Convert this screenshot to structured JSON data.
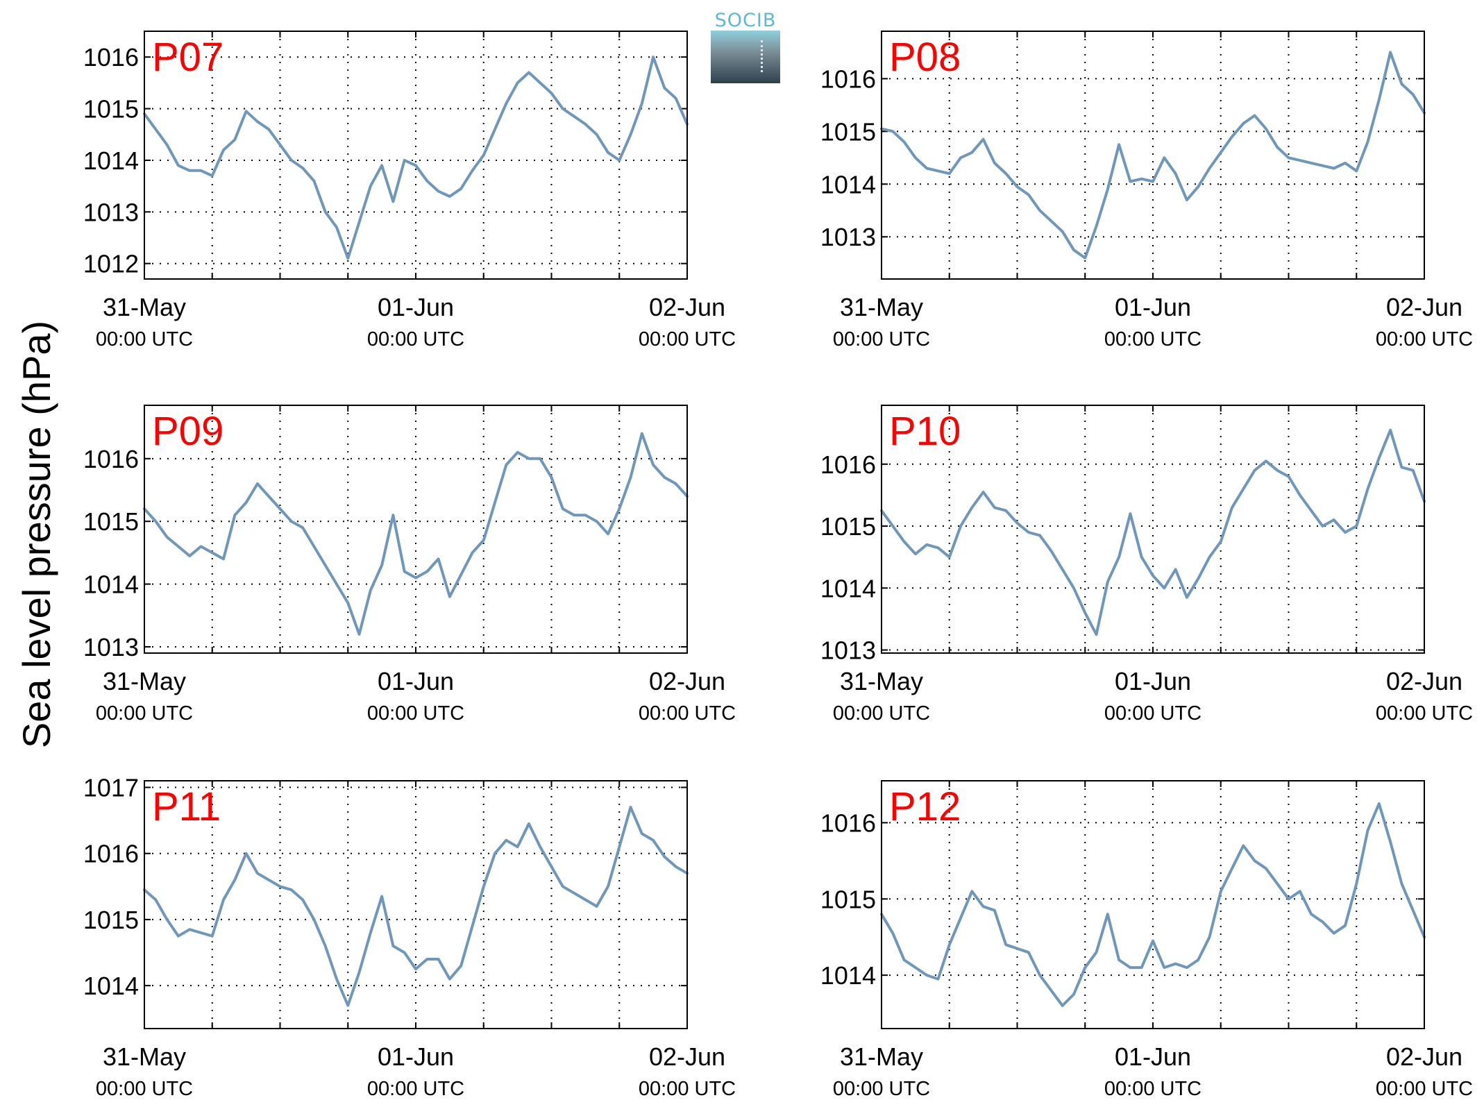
{
  "figure": {
    "ylabel": "Sea level pressure (hPa)",
    "logo_text": "SOCIB",
    "colors": {
      "line": "#6e97bb",
      "station_label": "#ff0000",
      "axes": "#000000",
      "grid": "#000000"
    }
  },
  "chart_data": [
    {
      "type": "line",
      "title": "P07",
      "xlim": [
        "31-May 00:00",
        "02-Jun 00:00"
      ],
      "ylim": [
        1011.7,
        1016.5
      ],
      "yticks": [
        1012,
        1013,
        1014,
        1015,
        1016
      ],
      "xtick_labels": [
        [
          "31-May",
          "00:00 UTC"
        ],
        [
          "01-Jun",
          "00:00 UTC"
        ],
        [
          "02-Jun",
          "00:00 UTC"
        ]
      ],
      "grid": true,
      "series": [
        {
          "x": [
            "31-May 00:00",
            "31-May 01:00",
            "31-May 02:00",
            "31-May 03:00",
            "31-May 04:00",
            "31-May 05:00",
            "31-May 06:00",
            "31-May 07:00",
            "31-May 08:00",
            "31-May 09:00",
            "31-May 10:00",
            "31-May 11:00",
            "31-May 12:00",
            "31-May 13:00",
            "31-May 14:00",
            "31-May 15:00",
            "31-May 16:00",
            "31-May 17:00",
            "31-May 18:00",
            "31-May 19:00",
            "31-May 20:00",
            "31-May 21:00",
            "31-May 22:00",
            "31-May 23:00",
            "01-Jun 00:00",
            "01-Jun 01:00",
            "01-Jun 02:00",
            "01-Jun 03:00",
            "01-Jun 04:00",
            "01-Jun 05:00",
            "01-Jun 06:00",
            "01-Jun 07:00",
            "01-Jun 08:00",
            "01-Jun 09:00",
            "01-Jun 10:00",
            "01-Jun 11:00",
            "01-Jun 12:00",
            "01-Jun 13:00",
            "01-Jun 14:00",
            "01-Jun 15:00",
            "01-Jun 16:00",
            "01-Jun 17:00",
            "01-Jun 18:00",
            "01-Jun 19:00",
            "01-Jun 20:00",
            "01-Jun 21:00",
            "01-Jun 22:00",
            "01-Jun 23:00",
            "02-Jun 00:00"
          ],
          "values": [
            1014.9,
            1014.6,
            1014.3,
            1013.9,
            1013.8,
            1013.8,
            1013.7,
            1014.2,
            1014.4,
            1014.95,
            1014.75,
            1014.6,
            1014.3,
            1014.0,
            1013.85,
            1013.6,
            1013.0,
            1012.7,
            1012.1,
            1012.8,
            1013.5,
            1013.9,
            1013.2,
            1014.0,
            1013.9,
            1013.6,
            1013.4,
            1013.3,
            1013.45,
            1013.8,
            1014.1,
            1014.6,
            1015.1,
            1015.5,
            1015.7,
            1015.5,
            1015.3,
            1015.0,
            1014.85,
            1014.7,
            1014.5,
            1014.15,
            1014.0,
            1014.5,
            1015.1,
            1016.0,
            1015.4,
            1015.2,
            1014.7
          ]
        }
      ]
    },
    {
      "type": "line",
      "title": "P08",
      "xlim": [
        "31-May 00:00",
        "02-Jun 00:00"
      ],
      "ylim": [
        1012.2,
        1016.9
      ],
      "yticks": [
        1013,
        1014,
        1015,
        1016
      ],
      "xtick_labels": [
        [
          "31-May",
          "00:00 UTC"
        ],
        [
          "01-Jun",
          "00:00 UTC"
        ],
        [
          "02-Jun",
          "00:00 UTC"
        ]
      ],
      "grid": true,
      "series": [
        {
          "x": [
            "31-May 00:00",
            "31-May 01:00",
            "31-May 02:00",
            "31-May 03:00",
            "31-May 04:00",
            "31-May 05:00",
            "31-May 06:00",
            "31-May 07:00",
            "31-May 08:00",
            "31-May 09:00",
            "31-May 10:00",
            "31-May 11:00",
            "31-May 12:00",
            "31-May 13:00",
            "31-May 14:00",
            "31-May 15:00",
            "31-May 16:00",
            "31-May 17:00",
            "31-May 18:00",
            "31-May 19:00",
            "31-May 20:00",
            "31-May 21:00",
            "31-May 22:00",
            "31-May 23:00",
            "01-Jun 00:00",
            "01-Jun 01:00",
            "01-Jun 02:00",
            "01-Jun 03:00",
            "01-Jun 04:00",
            "01-Jun 05:00",
            "01-Jun 06:00",
            "01-Jun 07:00",
            "01-Jun 08:00",
            "01-Jun 09:00",
            "01-Jun 10:00",
            "01-Jun 11:00",
            "01-Jun 12:00",
            "01-Jun 13:00",
            "01-Jun 14:00",
            "01-Jun 15:00",
            "01-Jun 16:00",
            "01-Jun 17:00",
            "01-Jun 18:00",
            "01-Jun 19:00",
            "01-Jun 20:00",
            "01-Jun 21:00",
            "01-Jun 22:00",
            "01-Jun 23:00",
            "02-Jun 00:00"
          ],
          "values": [
            1015.05,
            1015.0,
            1014.8,
            1014.5,
            1014.3,
            1014.25,
            1014.2,
            1014.5,
            1014.6,
            1014.85,
            1014.4,
            1014.2,
            1013.95,
            1013.8,
            1013.5,
            1013.3,
            1013.1,
            1012.75,
            1012.6,
            1013.2,
            1013.9,
            1014.75,
            1014.05,
            1014.1,
            1014.05,
            1014.5,
            1014.2,
            1013.7,
            1013.95,
            1014.3,
            1014.6,
            1014.9,
            1015.15,
            1015.3,
            1015.05,
            1014.7,
            1014.5,
            1014.45,
            1014.4,
            1014.35,
            1014.3,
            1014.4,
            1014.25,
            1014.8,
            1015.6,
            1016.5,
            1015.9,
            1015.7,
            1015.35
          ]
        }
      ]
    },
    {
      "type": "line",
      "title": "P09",
      "xlim": [
        "31-May 00:00",
        "02-Jun 00:00"
      ],
      "ylim": [
        1012.9,
        1016.85
      ],
      "yticks": [
        1013,
        1014,
        1015,
        1016
      ],
      "xtick_labels": [
        [
          "31-May",
          "00:00 UTC"
        ],
        [
          "01-Jun",
          "00:00 UTC"
        ],
        [
          "02-Jun",
          "00:00 UTC"
        ]
      ],
      "grid": true,
      "series": [
        {
          "x": [
            "31-May 00:00",
            "31-May 01:00",
            "31-May 02:00",
            "31-May 03:00",
            "31-May 04:00",
            "31-May 05:00",
            "31-May 06:00",
            "31-May 07:00",
            "31-May 08:00",
            "31-May 09:00",
            "31-May 10:00",
            "31-May 11:00",
            "31-May 12:00",
            "31-May 13:00",
            "31-May 14:00",
            "31-May 15:00",
            "31-May 16:00",
            "31-May 17:00",
            "31-May 18:00",
            "31-May 19:00",
            "31-May 20:00",
            "31-May 21:00",
            "31-May 22:00",
            "31-May 23:00",
            "01-Jun 00:00",
            "01-Jun 01:00",
            "01-Jun 02:00",
            "01-Jun 03:00",
            "01-Jun 04:00",
            "01-Jun 05:00",
            "01-Jun 06:00",
            "01-Jun 07:00",
            "01-Jun 08:00",
            "01-Jun 09:00",
            "01-Jun 10:00",
            "01-Jun 11:00",
            "01-Jun 12:00",
            "01-Jun 13:00",
            "01-Jun 14:00",
            "01-Jun 15:00",
            "01-Jun 16:00",
            "01-Jun 17:00",
            "01-Jun 18:00",
            "01-Jun 19:00",
            "01-Jun 20:00",
            "01-Jun 21:00",
            "01-Jun 22:00",
            "01-Jun 23:00",
            "02-Jun 00:00"
          ],
          "values": [
            1015.2,
            1015.0,
            1014.75,
            1014.6,
            1014.45,
            1014.6,
            1014.5,
            1014.4,
            1015.1,
            1015.3,
            1015.6,
            1015.4,
            1015.2,
            1015.0,
            1014.9,
            1014.6,
            1014.3,
            1014.0,
            1013.7,
            1013.2,
            1013.9,
            1014.3,
            1015.1,
            1014.2,
            1014.1,
            1014.2,
            1014.4,
            1013.8,
            1014.15,
            1014.5,
            1014.7,
            1015.3,
            1015.9,
            1016.1,
            1016.0,
            1016.0,
            1015.7,
            1015.2,
            1015.1,
            1015.1,
            1015.0,
            1014.8,
            1015.2,
            1015.7,
            1016.4,
            1015.9,
            1015.7,
            1015.6,
            1015.4
          ]
        }
      ]
    },
    {
      "type": "line",
      "title": "P10",
      "xlim": [
        "31-May 00:00",
        "02-Jun 00:00"
      ],
      "ylim": [
        1012.95,
        1016.95
      ],
      "yticks": [
        1013,
        1014,
        1015,
        1016
      ],
      "xtick_labels": [
        [
          "31-May",
          "00:00 UTC"
        ],
        [
          "01-Jun",
          "00:00 UTC"
        ],
        [
          "02-Jun",
          "00:00 UTC"
        ]
      ],
      "grid": true,
      "series": [
        {
          "x": [
            "31-May 00:00",
            "31-May 01:00",
            "31-May 02:00",
            "31-May 03:00",
            "31-May 04:00",
            "31-May 05:00",
            "31-May 06:00",
            "31-May 07:00",
            "31-May 08:00",
            "31-May 09:00",
            "31-May 10:00",
            "31-May 11:00",
            "31-May 12:00",
            "31-May 13:00",
            "31-May 14:00",
            "31-May 15:00",
            "31-May 16:00",
            "31-May 17:00",
            "31-May 18:00",
            "31-May 19:00",
            "31-May 20:00",
            "31-May 21:00",
            "31-May 22:00",
            "31-May 23:00",
            "01-Jun 00:00",
            "01-Jun 01:00",
            "01-Jun 02:00",
            "01-Jun 03:00",
            "01-Jun 04:00",
            "01-Jun 05:00",
            "01-Jun 06:00",
            "01-Jun 07:00",
            "01-Jun 08:00",
            "01-Jun 09:00",
            "01-Jun 10:00",
            "01-Jun 11:00",
            "01-Jun 12:00",
            "01-Jun 13:00",
            "01-Jun 14:00",
            "01-Jun 15:00",
            "01-Jun 16:00",
            "01-Jun 17:00",
            "01-Jun 18:00",
            "01-Jun 19:00",
            "01-Jun 20:00",
            "01-Jun 21:00",
            "01-Jun 22:00",
            "01-Jun 23:00",
            "02-Jun 00:00"
          ],
          "values": [
            1015.25,
            1015.0,
            1014.75,
            1014.55,
            1014.7,
            1014.65,
            1014.5,
            1015.0,
            1015.3,
            1015.55,
            1015.3,
            1015.25,
            1015.05,
            1014.9,
            1014.85,
            1014.6,
            1014.3,
            1014.0,
            1013.6,
            1013.25,
            1014.1,
            1014.5,
            1015.2,
            1014.5,
            1014.2,
            1014.0,
            1014.3,
            1013.85,
            1014.15,
            1014.5,
            1014.75,
            1015.3,
            1015.6,
            1015.9,
            1016.05,
            1015.9,
            1015.8,
            1015.5,
            1015.25,
            1015.0,
            1015.1,
            1014.9,
            1015.0,
            1015.6,
            1016.1,
            1016.55,
            1015.95,
            1015.9,
            1015.4
          ]
        }
      ]
    },
    {
      "type": "line",
      "title": "P11",
      "xlim": [
        "31-May 00:00",
        "02-Jun 00:00"
      ],
      "ylim": [
        1013.35,
        1017.1
      ],
      "yticks": [
        1014,
        1015,
        1016,
        1017
      ],
      "xtick_labels": [
        [
          "31-May",
          "00:00 UTC"
        ],
        [
          "01-Jun",
          "00:00 UTC"
        ],
        [
          "02-Jun",
          "00:00 UTC"
        ]
      ],
      "grid": true,
      "series": [
        {
          "x": [
            "31-May 00:00",
            "31-May 01:00",
            "31-May 02:00",
            "31-May 03:00",
            "31-May 04:00",
            "31-May 05:00",
            "31-May 06:00",
            "31-May 07:00",
            "31-May 08:00",
            "31-May 09:00",
            "31-May 10:00",
            "31-May 11:00",
            "31-May 12:00",
            "31-May 13:00",
            "31-May 14:00",
            "31-May 15:00",
            "31-May 16:00",
            "31-May 17:00",
            "31-May 18:00",
            "31-May 19:00",
            "31-May 20:00",
            "31-May 21:00",
            "31-May 22:00",
            "31-May 23:00",
            "01-Jun 00:00",
            "01-Jun 01:00",
            "01-Jun 02:00",
            "01-Jun 03:00",
            "01-Jun 04:00",
            "01-Jun 05:00",
            "01-Jun 06:00",
            "01-Jun 07:00",
            "01-Jun 08:00",
            "01-Jun 09:00",
            "01-Jun 10:00",
            "01-Jun 11:00",
            "01-Jun 12:00",
            "01-Jun 13:00",
            "01-Jun 14:00",
            "01-Jun 15:00",
            "01-Jun 16:00",
            "01-Jun 17:00",
            "01-Jun 18:00",
            "01-Jun 19:00",
            "01-Jun 20:00",
            "01-Jun 21:00",
            "01-Jun 22:00",
            "01-Jun 23:00",
            "02-Jun 00:00"
          ],
          "values": [
            1015.45,
            1015.3,
            1015.0,
            1014.75,
            1014.85,
            1014.8,
            1014.75,
            1015.3,
            1015.6,
            1016.0,
            1015.7,
            1015.6,
            1015.5,
            1015.45,
            1015.3,
            1015.0,
            1014.6,
            1014.1,
            1013.7,
            1014.2,
            1014.8,
            1015.35,
            1014.6,
            1014.5,
            1014.25,
            1014.4,
            1014.4,
            1014.1,
            1014.3,
            1014.9,
            1015.5,
            1016.0,
            1016.2,
            1016.1,
            1016.45,
            1016.1,
            1015.8,
            1015.5,
            1015.4,
            1015.3,
            1015.2,
            1015.5,
            1016.1,
            1016.7,
            1016.3,
            1016.2,
            1015.95,
            1015.8,
            1015.7
          ]
        }
      ]
    },
    {
      "type": "line",
      "title": "P12",
      "xlim": [
        "31-May 00:00",
        "02-Jun 00:00"
      ],
      "ylim": [
        1013.3,
        1016.55
      ],
      "yticks": [
        1014,
        1015,
        1016
      ],
      "xtick_labels": [
        [
          "31-May",
          "00:00 UTC"
        ],
        [
          "01-Jun",
          "00:00 UTC"
        ],
        [
          "02-Jun",
          "00:00 UTC"
        ]
      ],
      "grid": true,
      "series": [
        {
          "x": [
            "31-May 00:00",
            "31-May 01:00",
            "31-May 02:00",
            "31-May 03:00",
            "31-May 04:00",
            "31-May 05:00",
            "31-May 06:00",
            "31-May 07:00",
            "31-May 08:00",
            "31-May 09:00",
            "31-May 10:00",
            "31-May 11:00",
            "31-May 12:00",
            "31-May 13:00",
            "31-May 14:00",
            "31-May 15:00",
            "31-May 16:00",
            "31-May 17:00",
            "31-May 18:00",
            "31-May 19:00",
            "31-May 20:00",
            "31-May 21:00",
            "31-May 22:00",
            "31-May 23:00",
            "01-Jun 00:00",
            "01-Jun 01:00",
            "01-Jun 02:00",
            "01-Jun 03:00",
            "01-Jun 04:00",
            "01-Jun 05:00",
            "01-Jun 06:00",
            "01-Jun 07:00",
            "01-Jun 08:00",
            "01-Jun 09:00",
            "01-Jun 10:00",
            "01-Jun 11:00",
            "01-Jun 12:00",
            "01-Jun 13:00",
            "01-Jun 14:00",
            "01-Jun 15:00",
            "01-Jun 16:00",
            "01-Jun 17:00",
            "01-Jun 18:00",
            "01-Jun 19:00",
            "01-Jun 20:00",
            "01-Jun 21:00",
            "01-Jun 22:00",
            "01-Jun 23:00",
            "02-Jun 00:00"
          ],
          "values": [
            1014.8,
            1014.55,
            1014.2,
            1014.1,
            1014.0,
            1013.95,
            1014.4,
            1014.75,
            1015.1,
            1014.9,
            1014.85,
            1014.4,
            1014.35,
            1014.3,
            1014.0,
            1013.8,
            1013.6,
            1013.75,
            1014.1,
            1014.3,
            1014.8,
            1014.2,
            1014.1,
            1014.1,
            1014.45,
            1014.1,
            1014.15,
            1014.1,
            1014.2,
            1014.5,
            1015.1,
            1015.4,
            1015.7,
            1015.5,
            1015.4,
            1015.2,
            1015.0,
            1015.1,
            1014.8,
            1014.7,
            1014.55,
            1014.65,
            1015.2,
            1015.9,
            1016.25,
            1015.75,
            1015.2,
            1014.85,
            1014.5
          ]
        }
      ]
    }
  ]
}
